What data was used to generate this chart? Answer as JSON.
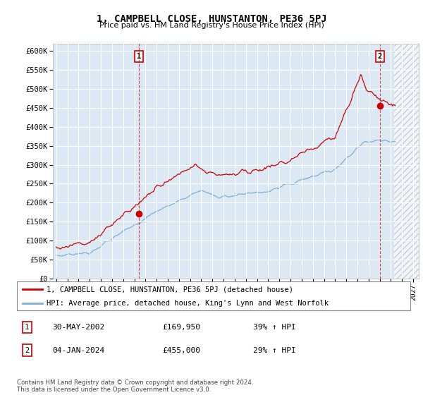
{
  "title": "1, CAMPBELL CLOSE, HUNSTANTON, PE36 5PJ",
  "subtitle": "Price paid vs. HM Land Registry's House Price Index (HPI)",
  "ylim": [
    0,
    620000
  ],
  "yticks": [
    0,
    50000,
    100000,
    150000,
    200000,
    250000,
    300000,
    350000,
    400000,
    450000,
    500000,
    550000,
    600000
  ],
  "ytick_labels": [
    "£0",
    "£50K",
    "£100K",
    "£150K",
    "£200K",
    "£250K",
    "£300K",
    "£350K",
    "£400K",
    "£450K",
    "£500K",
    "£550K",
    "£600K"
  ],
  "xlim_start": 1994.7,
  "xlim_end": 2027.5,
  "hatch_start": 2025.3,
  "transaction1_x": 2002.42,
  "transaction1_y": 169950,
  "transaction2_x": 2024.01,
  "transaction2_y": 455000,
  "red_line_color": "#cc0000",
  "blue_line_color": "#7ab0d4",
  "background_color": "#dce9f5",
  "grid_color": "#ffffff",
  "legend_label_red": "1, CAMPBELL CLOSE, HUNSTANTON, PE36 5PJ (detached house)",
  "legend_label_blue": "HPI: Average price, detached house, King's Lynn and West Norfolk",
  "note1_date": "30-MAY-2002",
  "note1_price": "£169,950",
  "note1_hpi": "39% ↑ HPI",
  "note2_date": "04-JAN-2024",
  "note2_price": "£455,000",
  "note2_hpi": "29% ↑ HPI",
  "copyright": "Contains HM Land Registry data © Crown copyright and database right 2024.\nThis data is licensed under the Open Government Licence v3.0."
}
